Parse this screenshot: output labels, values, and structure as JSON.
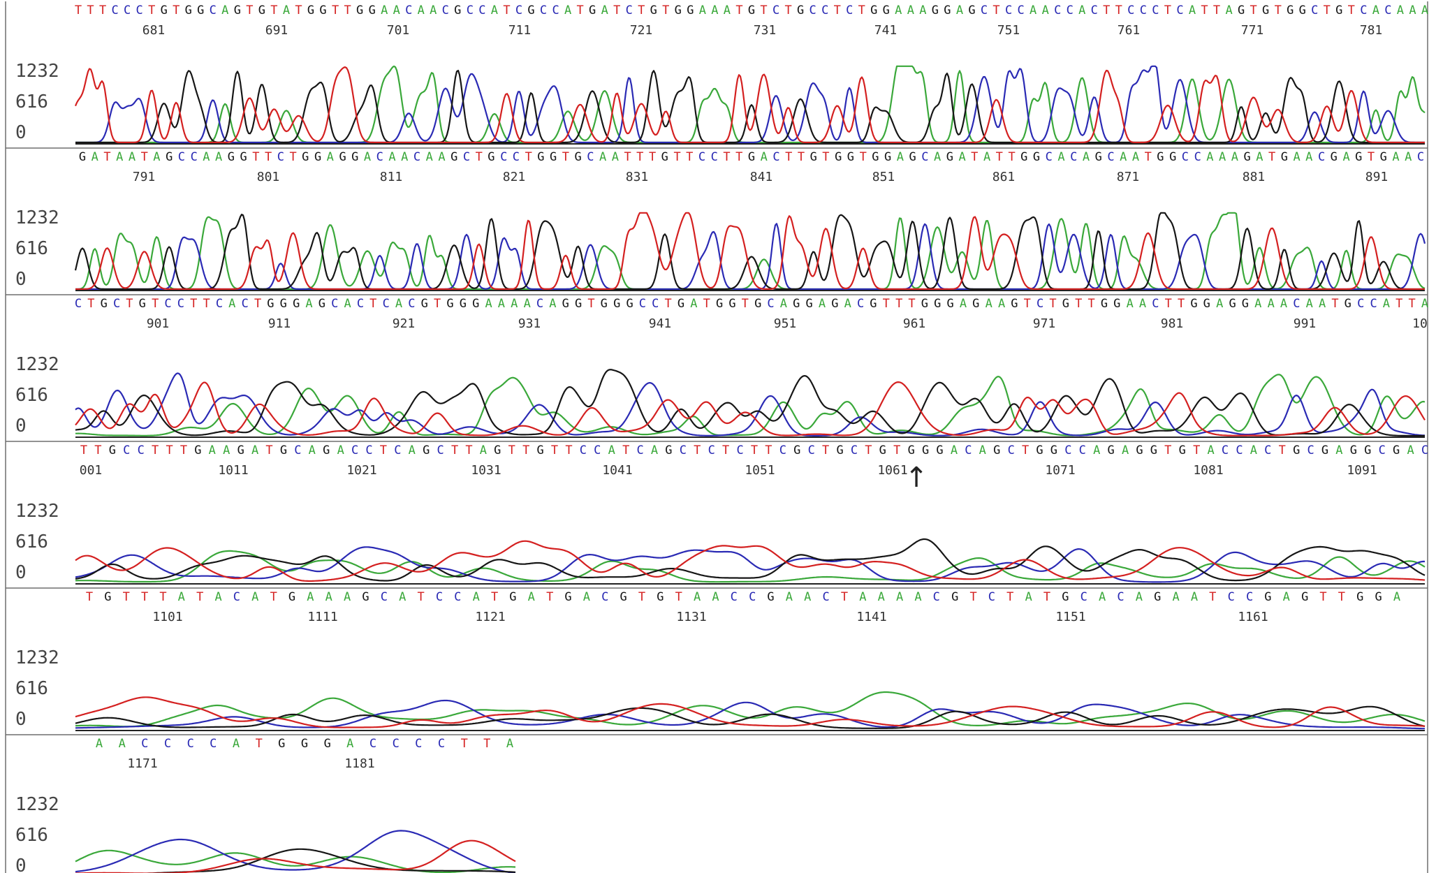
{
  "chart_data": {
    "type": "line",
    "title": "",
    "xlabel": "",
    "ylabel": "",
    "yticks": [
      "1232",
      "616",
      "0"
    ],
    "ylim": [
      0,
      1232
    ],
    "colors": {
      "A": "#3aa83a",
      "C": "#2a2ab4",
      "G": "#161616",
      "T": "#d42020"
    },
    "series": [
      {
        "base": "A",
        "color": "#3aa83a"
      },
      {
        "base": "C",
        "color": "#2a2ab4"
      },
      {
        "base": "G",
        "color": "#161616"
      },
      {
        "base": "T",
        "color": "#d42020"
      }
    ],
    "marker_symbol": "↑",
    "marker_after_position": 1061,
    "panels": [
      {
        "sequence": "TTTCCCTGTGGCAGTGTATGGTTGGAACAACGCCATCGCCATGATCTGTGGAAATGTCTGCCTCTGGAAAGGAGCTCCAACCACTTCCCTCATTAGTGTGGCTGTCACAAA",
        "positions": [
          "681",
          "691",
          "701",
          "711",
          "721",
          "731",
          "741",
          "751",
          "761",
          "771",
          "781"
        ],
        "signal": "high"
      },
      {
        "sequence": "GATAATAGCCAAGGTTCTGGAGGACAACAAGCTGCCTGGTGCAATTTGTTCCTTGACTTGTGGTGGAGCAGATATTGGCACAGCAATGGCCAAAGATGAACGAGTGAAC",
        "positions": [
          "791",
          "801",
          "811",
          "821",
          "831",
          "841",
          "851",
          "861",
          "871",
          "881",
          "891"
        ],
        "signal": "high"
      },
      {
        "sequence": "CTGCTGTCCTTCACTGGGAGCACTCACGTGGGAAAACAGGTGGGCCTGATGGTGCAGGAGACGTTTGGGAGAAGTCTGTTGGAACTTGGAGGAAACAATGCCATTA",
        "positions": [
          "901",
          "911",
          "921",
          "931",
          "941",
          "951",
          "961",
          "971",
          "981",
          "991",
          "10"
        ],
        "signal": "mid"
      },
      {
        "sequence": "TTGCCTTTGAAGATGCAGACCTCAGCTTAGTTGTTCCATCAGCTCTCTTCGCTGCTGTGGGACAGCTGGCCAGAGGTGTACCACTGCGAGGCGAC",
        "positions": [
          "001",
          "1011",
          "1021",
          "1031",
          "1041",
          "1051",
          "1061",
          "1071",
          "1081",
          "1091"
        ],
        "signal": "low"
      },
      {
        "sequence": "TGTTTATACATGAAAGCATCCATGATGACGTGTAACCGAACTAAAACGTCTATGCACAGAATCCGAGTTGGA",
        "positions": [
          "1101",
          "1111",
          "1121",
          "1131",
          "1141",
          "1151",
          "1161"
        ],
        "signal": "very-low"
      },
      {
        "sequence": "AACCCCATGGGACCCCTTA",
        "positions": [
          "1171",
          "1181"
        ],
        "signal": "decay"
      }
    ]
  }
}
